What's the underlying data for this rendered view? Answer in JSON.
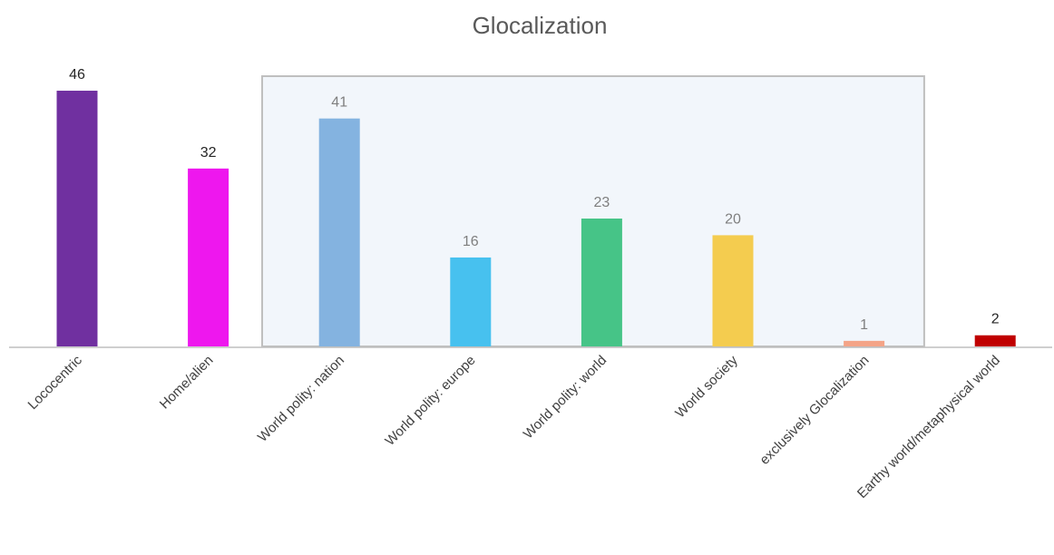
{
  "chart_data": {
    "type": "bar",
    "title": "Glocalization",
    "xlabel": "",
    "ylabel": "",
    "categories": [
      "Lococentric",
      "Home/alien",
      "World polity: nation",
      "World polity: europe",
      "World polity: world",
      "World society",
      "exclusively Glocalization",
      "Earthy world/metaphysical world"
    ],
    "values": [
      46,
      32,
      41,
      16,
      23,
      20,
      1,
      2
    ],
    "colors": [
      "#7030a0",
      "#ee17ee",
      "#84b3e0",
      "#47c1ef",
      "#46c487",
      "#f4cc4f",
      "#f4a487",
      "#c00000"
    ],
    "ylim": [
      0,
      50
    ],
    "grid": false,
    "legend": "none",
    "highlight_box": {
      "from_index": 2,
      "to_index": 6,
      "fill": "#f2f6fb",
      "stroke": "#bfbfbf"
    },
    "value_label_colors": {
      "inside_box": "#7f7f7f",
      "outside_box": "#262626"
    }
  }
}
